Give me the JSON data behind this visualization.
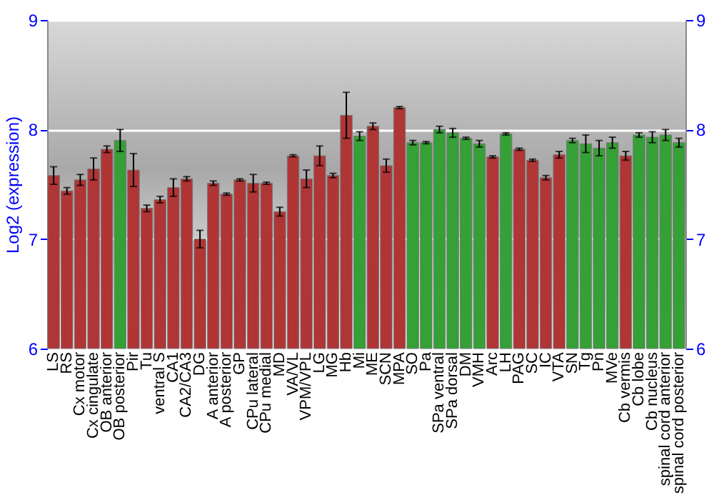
{
  "chart_data": {
    "type": "bar",
    "ylabel": "Log2 (expression)",
    "categories": [
      "LS",
      "RS",
      "Cx motor",
      "Cx cingulate",
      "OB anterior",
      "OB posterior",
      "Pir",
      "Tu",
      "ventral S",
      "CA1",
      "CA2/CA3",
      "DG",
      "A anterior",
      "A posterior",
      "GP",
      "CPu lateral",
      "CPu medial",
      "MD",
      "VA/VL",
      "VPM/VPL",
      "LG",
      "MG",
      "Hb",
      "Mi",
      "ME",
      "SCN",
      "MPA",
      "SO",
      "Pa",
      "SPa ventral",
      "SPa dorsal",
      "DM",
      "VMH",
      "Arc",
      "LH",
      "PAG",
      "SC",
      "IC",
      "VTA",
      "SN",
      "Tg",
      "Pn",
      "MVe",
      "Cb vermis",
      "Cb lobe",
      "Cb nucleus",
      "spinal cord anterior",
      "spinal cord posterior"
    ],
    "values": [
      7.58,
      7.44,
      7.54,
      7.64,
      7.82,
      7.9,
      7.63,
      7.28,
      7.36,
      7.47,
      7.55,
      7.0,
      7.51,
      7.41,
      7.54,
      7.51,
      7.51,
      7.25,
      7.76,
      7.55,
      7.76,
      7.58,
      8.13,
      7.94,
      8.03,
      7.67,
      8.2,
      7.88,
      7.88,
      8.0,
      7.97,
      7.92,
      7.87,
      7.75,
      7.96,
      7.82,
      7.72,
      7.56,
      7.77,
      7.9,
      7.87,
      7.83,
      7.88,
      7.76,
      7.95,
      7.93,
      7.95,
      7.88
    ],
    "errors": [
      0.08,
      0.03,
      0.05,
      0.1,
      0.03,
      0.1,
      0.15,
      0.03,
      0.03,
      0.08,
      0.02,
      0.08,
      0.02,
      0.01,
      0.01,
      0.08,
      0.01,
      0.04,
      0.01,
      0.08,
      0.09,
      0.02,
      0.21,
      0.04,
      0.03,
      0.06,
      0.01,
      0.02,
      0.01,
      0.03,
      0.04,
      0.01,
      0.03,
      0.01,
      0.01,
      0.01,
      0.01,
      0.02,
      0.03,
      0.02,
      0.08,
      0.07,
      0.05,
      0.04,
      0.02,
      0.05,
      0.05,
      0.04
    ],
    "colors": [
      "#b03535",
      "#b03535",
      "#b03535",
      "#b03535",
      "#b03535",
      "#35a035",
      "#b03535",
      "#b03535",
      "#b03535",
      "#b03535",
      "#b03535",
      "#b03535",
      "#b03535",
      "#b03535",
      "#b03535",
      "#b03535",
      "#b03535",
      "#b03535",
      "#b03535",
      "#b03535",
      "#b03535",
      "#b03535",
      "#b03535",
      "#35a035",
      "#b03535",
      "#b03535",
      "#b03535",
      "#35a035",
      "#35a035",
      "#35a035",
      "#35a035",
      "#35a035",
      "#35a035",
      "#b03535",
      "#35a035",
      "#b03535",
      "#b03535",
      "#b03535",
      "#b03535",
      "#35a035",
      "#35a035",
      "#35a035",
      "#35a035",
      "#b03535",
      "#35a035",
      "#35a035",
      "#35a035",
      "#35a035"
    ],
    "ylim": [
      6,
      9
    ],
    "yticks": [
      6,
      7,
      8,
      9
    ],
    "y2lim": [
      6,
      9
    ],
    "y2ticks": [
      6,
      7,
      8,
      9
    ],
    "grid": "y"
  }
}
